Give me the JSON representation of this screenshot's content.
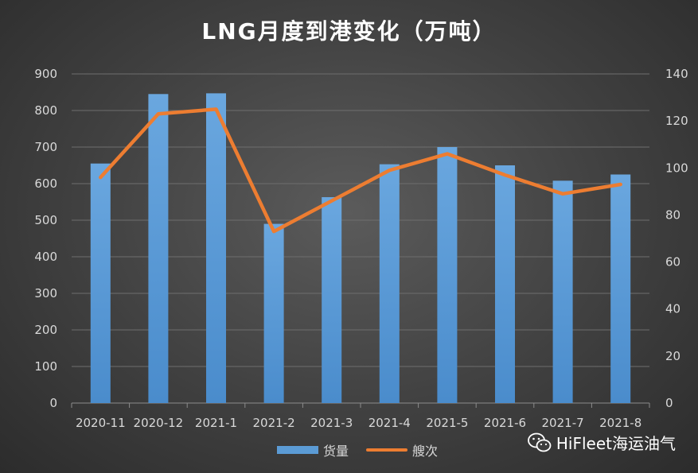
{
  "chart_data": {
    "type": "bar",
    "title": "LNG月度到港变化（万吨）",
    "categories": [
      "2020-11",
      "2020-12",
      "2021-1",
      "2021-2",
      "2021-3",
      "2021-4",
      "2021-5",
      "2021-6",
      "2021-7",
      "2021-8"
    ],
    "series": [
      {
        "name": "货量",
        "type": "bar",
        "axis": "left",
        "values": [
          655,
          845,
          847,
          490,
          563,
          653,
          700,
          650,
          608,
          625
        ]
      },
      {
        "name": "艘次",
        "type": "line",
        "axis": "right",
        "values": [
          96,
          123,
          125,
          73,
          86,
          99,
          106,
          97,
          89,
          93
        ]
      }
    ],
    "y_left": {
      "min": 0,
      "max": 900,
      "ticks": [
        0,
        100,
        200,
        300,
        400,
        500,
        600,
        700,
        800,
        900
      ]
    },
    "y_right": {
      "min": 0,
      "max": 140,
      "ticks": [
        0,
        20,
        40,
        60,
        80,
        100,
        120,
        140
      ]
    },
    "grid": true,
    "legend_position": "bottom",
    "colors": {
      "bar": "#5b9bd5",
      "line": "#ed7d31",
      "grid": "#6e6e6e",
      "axis_text": "#d9d9d9"
    }
  },
  "legend": {
    "bar_label": "货量",
    "line_label": "艘次"
  },
  "watermark": {
    "text": "HiFleet海运油气",
    "icon": "wechat-icon"
  }
}
